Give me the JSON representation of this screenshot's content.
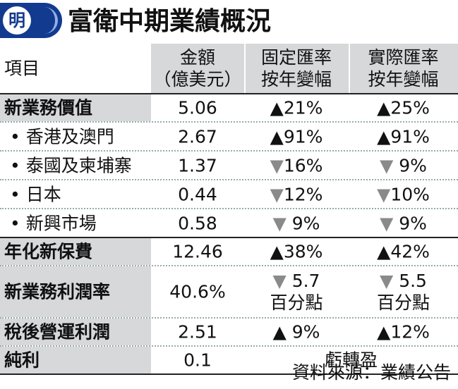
{
  "header": {
    "logo_char": "明",
    "title": "富衛中期業績概況"
  },
  "columns": {
    "item": "項目",
    "amount_line1": "金額",
    "amount_line2": "（億美元）",
    "fixed_line1": "固定匯率",
    "fixed_line2": "按年變幅",
    "actual_line1": "實際匯率",
    "actual_line2": "按年變幅"
  },
  "rows": [
    {
      "label": "新業務價值",
      "amount": "5.06",
      "fixed": "▲21%",
      "actual": "▲25%"
    },
    {
      "label": "• 香港及澳門",
      "amount": "2.67",
      "fixed": "▲91%",
      "actual": "▲91%"
    },
    {
      "label": "• 泰國及柬埔寨",
      "amount": "1.37",
      "fixed": "▼16%",
      "actual": "▼ 9%"
    },
    {
      "label": "• 日本",
      "amount": "0.44",
      "fixed": "▼12%",
      "actual": "▼10%"
    },
    {
      "label": "• 新興市場",
      "amount": "0.58",
      "fixed": "▼ 9%",
      "actual": "▼ 9%"
    },
    {
      "label": "年化新保費",
      "amount": "12.46",
      "fixed": "▲38%",
      "actual": "▲42%"
    },
    {
      "label": "新業務利潤率",
      "amount": "40.6%",
      "fixed_l1": "▼ 5.7",
      "fixed_l2": "百分點",
      "actual_l1": "▼ 5.5",
      "actual_l2": "百分點"
    },
    {
      "label": "稅後營運利潤",
      "amount": "2.51",
      "fixed": "▲ 9%",
      "actual": "▲12%"
    },
    {
      "label": "純利",
      "amount": "0.1",
      "merged": "虧轉盈"
    }
  ],
  "footer": {
    "source": "資料來源：業績公告"
  },
  "colors": {
    "brand_blue": "#123a8f",
    "light_blue": "#8fb1e8",
    "shade": "#d7d8da",
    "down_triangle": "#8a8a8a"
  }
}
